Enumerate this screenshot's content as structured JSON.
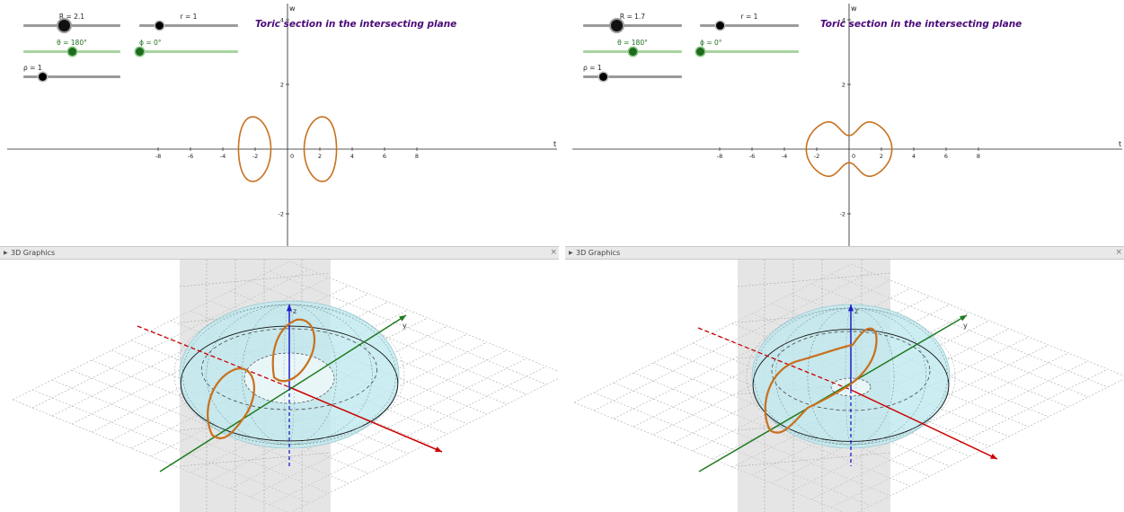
{
  "colors": {
    "curve": "#c8701e",
    "axis_x": "#cc0000",
    "axis_y": "#1f7a1f",
    "axis_z": "#1e1ec8",
    "torus_fill": "#bfe8ee",
    "title": "#4b0a78",
    "slider_green": "#1d6b1d"
  },
  "common": {
    "title": "Toric section in the intersecting plane",
    "axis_t": "t",
    "axis_w": "w",
    "x_ticks": [
      "-8",
      "-6",
      "-4",
      "-2",
      "0",
      "2",
      "4",
      "6",
      "8"
    ],
    "y_ticks": [
      "4",
      "2",
      "-2"
    ],
    "origin_label": "0",
    "header_3d": "3D Graphics",
    "close_icon": "×",
    "y3d_label": "y",
    "z3d_label": "z"
  },
  "panels": [
    {
      "sliders": {
        "R": {
          "label": "R = 2.1",
          "value": 2.1
        },
        "r": {
          "label": "r = 1",
          "value": 1
        },
        "theta": {
          "label": "θ = 180°",
          "value": 180
        },
        "phi": {
          "label": "ϕ = 0°",
          "value": 0
        },
        "rho": {
          "label": "ρ = 1",
          "value": 1
        }
      }
    },
    {
      "sliders": {
        "R": {
          "label": "R = 1.7",
          "value": 1.7
        },
        "r": {
          "label": "r = 1",
          "value": 1
        },
        "theta": {
          "label": "θ = 180°",
          "value": 180
        },
        "phi": {
          "label": "ϕ = 0°",
          "value": 0
        },
        "rho": {
          "label": "ρ = 1",
          "value": 1
        }
      }
    }
  ]
}
